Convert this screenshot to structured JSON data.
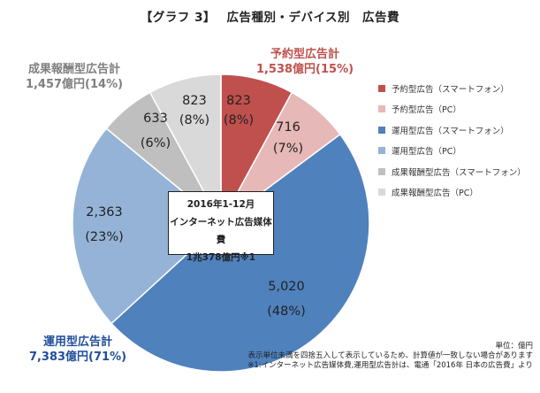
{
  "title": "【グラフ 3】　 広告種別・デバイス別　広告費",
  "chart_data": {
    "type": "pie",
    "slices": [
      {
        "name": "予約型広告（スマートフォン）",
        "value": 823,
        "value_label": "823",
        "pct_label": "(8%)",
        "color": "#c0504d"
      },
      {
        "name": "予約型広告（PC）",
        "value": 716,
        "value_label": "716",
        "pct_label": "(7%)",
        "color": "#e6b8b7"
      },
      {
        "name": "運用型広告（スマートフォン）",
        "value": 5020,
        "value_label": "5,020",
        "pct_label": "(48%)",
        "color": "#4f81bd"
      },
      {
        "name": "運用型広告（PC）",
        "value": 2363,
        "value_label": "2,363",
        "pct_label": "(23%)",
        "color": "#95b3d7"
      },
      {
        "name": "成果報酬型広告（スマートフォン）",
        "value": 633,
        "value_label": "633",
        "pct_label": "(6%)",
        "color": "#bfbfbf"
      },
      {
        "name": "成果報酬型広告（PC）",
        "value": 823,
        "value_label": "823",
        "pct_label": "(8%)",
        "color": "#d9d9d9"
      }
    ],
    "groups": [
      {
        "name": "予約型広告計",
        "total": "1,538億円(15%)",
        "color": "#c0504d"
      },
      {
        "name": "運用型広告計",
        "total": "7,383億円(71%)",
        "color": "#1f4e9b"
      },
      {
        "name": "成果報酬型広告計",
        "total": "1,457億円(14%)",
        "color": "#7f7f7f"
      }
    ],
    "center_box": [
      "2016年1-12月",
      "インターネット広告媒体費",
      "1兆378億円※1"
    ],
    "legend_position": "right"
  },
  "notes": {
    "unit": "単位：億円",
    "rounding": "表示単位未満を四捨五入して表示しているため、計算値が一致しない場合があります",
    "source": "※1:インターネット広告媒体費,運用型広告計は、電通「2016年 日本の広告費」より"
  }
}
